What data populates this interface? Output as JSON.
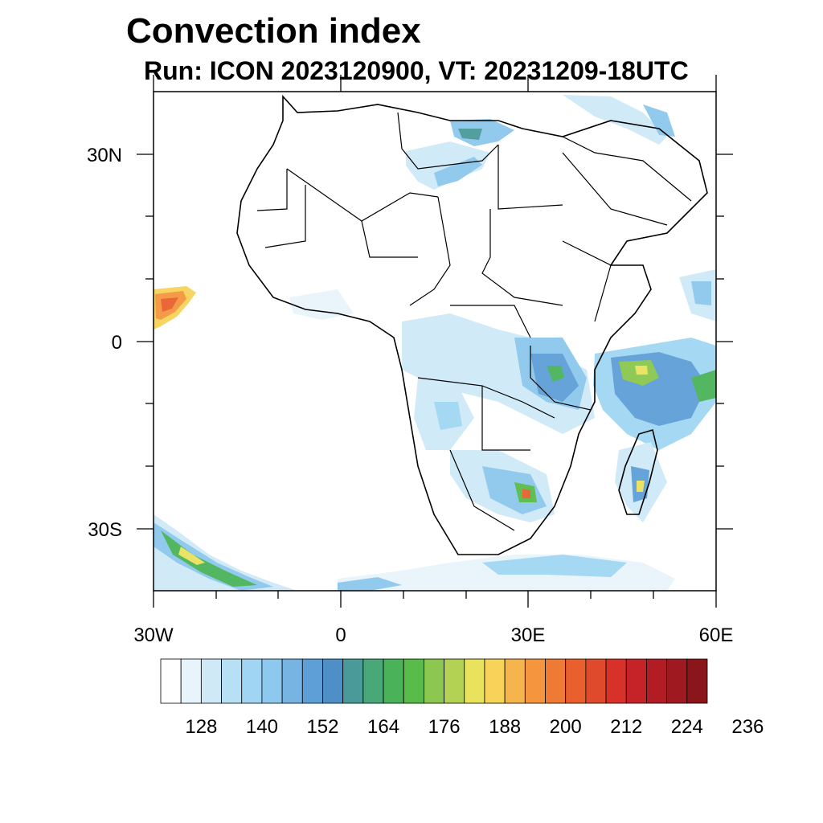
{
  "title": "Convection index",
  "subtitle": "Run: ICON 2023120900,  VT: 20231209-18UTC",
  "map": {
    "region": "Africa",
    "lon_range": [
      -30,
      60
    ],
    "lat_range": [
      -40,
      40
    ],
    "lon_labels": [
      {
        "lon": -30,
        "text": "30W"
      },
      {
        "lon": 0,
        "text": "0"
      },
      {
        "lon": 30,
        "text": "30E"
      },
      {
        "lon": 60,
        "text": "60E"
      }
    ],
    "lat_labels": [
      {
        "lat": 30,
        "text": "30N"
      },
      {
        "lat": 0,
        "text": "0"
      },
      {
        "lat": -30,
        "text": "30S"
      }
    ]
  },
  "colorbar": {
    "colors": [
      "#ffffff",
      "#e8f4fb",
      "#cfe9f7",
      "#b8e0f5",
      "#a0d6f3",
      "#8dc8ee",
      "#76b4e4",
      "#5d9fd6",
      "#4f8fc8",
      "#4a9a9a",
      "#48a877",
      "#4ab359",
      "#58bb4a",
      "#8cc74f",
      "#b3d253",
      "#e9e25d",
      "#f7d35a",
      "#f6b44c",
      "#f5963f",
      "#ef7a34",
      "#e9602e",
      "#e04a2c",
      "#d8312a",
      "#c62328",
      "#b21c24",
      "#9e1a20",
      "#8a161b"
    ],
    "tick_labels": [
      "128",
      "140",
      "152",
      "164",
      "176",
      "188",
      "200",
      "212",
      "224",
      "236"
    ],
    "first_tick_index": 2,
    "tick_every": 3
  }
}
